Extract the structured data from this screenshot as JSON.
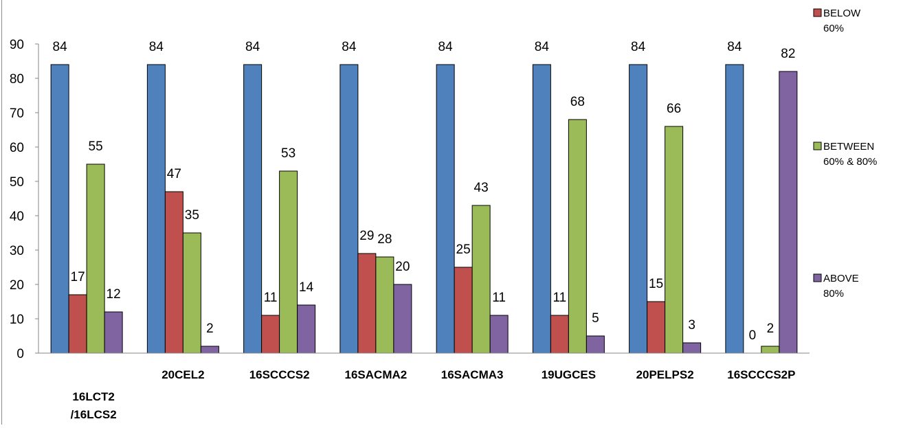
{
  "chart_data": {
    "type": "bar",
    "title": "",
    "xlabel": "",
    "ylabel": "",
    "ylim": [
      0,
      90
    ],
    "yticks": [
      0,
      10,
      20,
      30,
      40,
      50,
      60,
      70,
      80,
      90
    ],
    "grid": false,
    "legend_position": "right",
    "categories": [
      "16LCT2 /16LCS2",
      "20CEL2",
      "16SCCCS2",
      "16SACMA2",
      "16SACMA3",
      "19UGCES",
      "20PELPS2",
      "16SCCCS2P"
    ],
    "series": [
      {
        "name": "",
        "color": "#4f81bd",
        "values": [
          84,
          84,
          84,
          84,
          84,
          84,
          84,
          84
        ]
      },
      {
        "name": "BELOW 60%",
        "color": "#c0504d",
        "values": [
          17,
          47,
          11,
          29,
          25,
          11,
          15,
          0
        ]
      },
      {
        "name": "BETWEEN 60% & 80%",
        "color": "#9bbb59",
        "values": [
          55,
          35,
          53,
          28,
          43,
          68,
          66,
          2
        ]
      },
      {
        "name": "ABOVE 80%",
        "color": "#8064a2",
        "values": [
          12,
          2,
          14,
          20,
          11,
          5,
          3,
          82
        ]
      }
    ]
  }
}
